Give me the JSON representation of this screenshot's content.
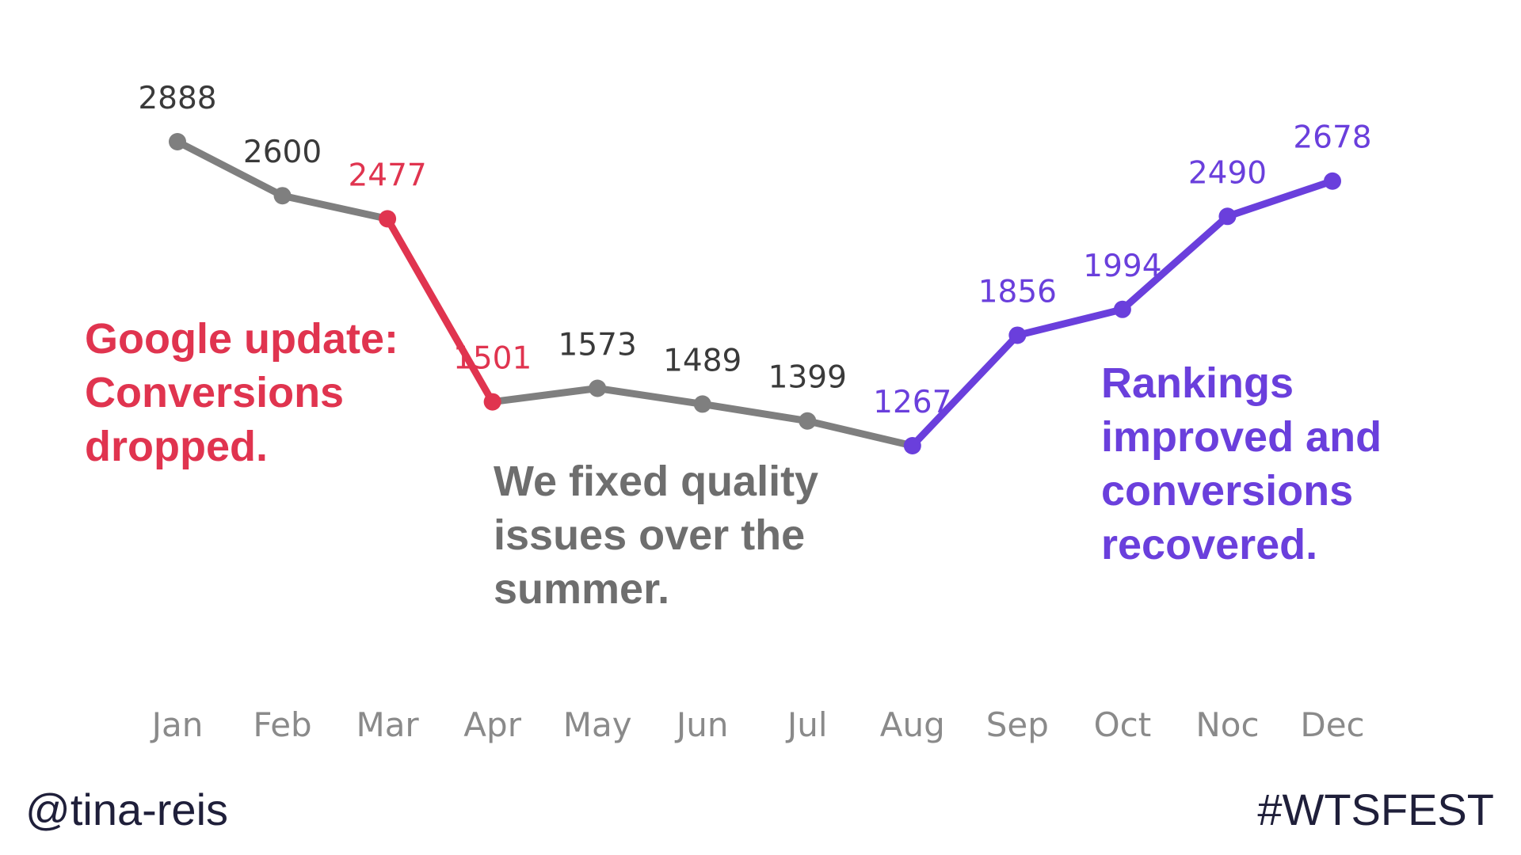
{
  "chart_data": {
    "type": "line",
    "title": "",
    "xlabel": "",
    "ylabel": "",
    "categories": [
      "Jan",
      "Feb",
      "Mar",
      "Apr",
      "May",
      "Jun",
      "Jul",
      "Aug",
      "Sep",
      "Oct",
      "Noc",
      "Dec"
    ],
    "values": [
      2888,
      2600,
      2477,
      1501,
      1573,
      1489,
      1399,
      1267,
      1856,
      1994,
      2490,
      2678
    ],
    "ylim": [
      1200,
      2900
    ],
    "grid": false,
    "segments": [
      {
        "name": "before-update",
        "from_index": 0,
        "to_index": 2,
        "color": "#7f7f7f"
      },
      {
        "name": "google-update-drop",
        "from_index": 2,
        "to_index": 3,
        "color": "#e0344f"
      },
      {
        "name": "summer-fixes",
        "from_index": 3,
        "to_index": 7,
        "color": "#7f7f7f"
      },
      {
        "name": "recovery",
        "from_index": 7,
        "to_index": 11,
        "color": "#6a3fdc"
      }
    ],
    "point_colors": [
      "#7f7f7f",
      "#7f7f7f",
      "#e0344f",
      "#e0344f",
      "#7f7f7f",
      "#7f7f7f",
      "#7f7f7f",
      "#6a3fdc",
      "#6a3fdc",
      "#6a3fdc",
      "#6a3fdc",
      "#6a3fdc"
    ],
    "label_colors": [
      "#3a3a3a",
      "#3a3a3a",
      "#e0344f",
      "#e0344f",
      "#3a3a3a",
      "#3a3a3a",
      "#3a3a3a",
      "#6a3fdc",
      "#6a3fdc",
      "#6a3fdc",
      "#6a3fdc",
      "#6a3fdc"
    ],
    "annotations": [
      {
        "key": "drop",
        "text": "Google update:\nConversions\ndropped.",
        "color": "#e0344f"
      },
      {
        "key": "fix",
        "text": "We fixed quality\nissues over the\nsummer.",
        "color": "#6e6e6e"
      },
      {
        "key": "recover",
        "text": "Rankings\nimproved and\nconversions\nrecovered.",
        "color": "#6a3fdc"
      }
    ]
  },
  "footer": {
    "handle": "@tina-reis",
    "hashtag": "#WTSFEST"
  }
}
